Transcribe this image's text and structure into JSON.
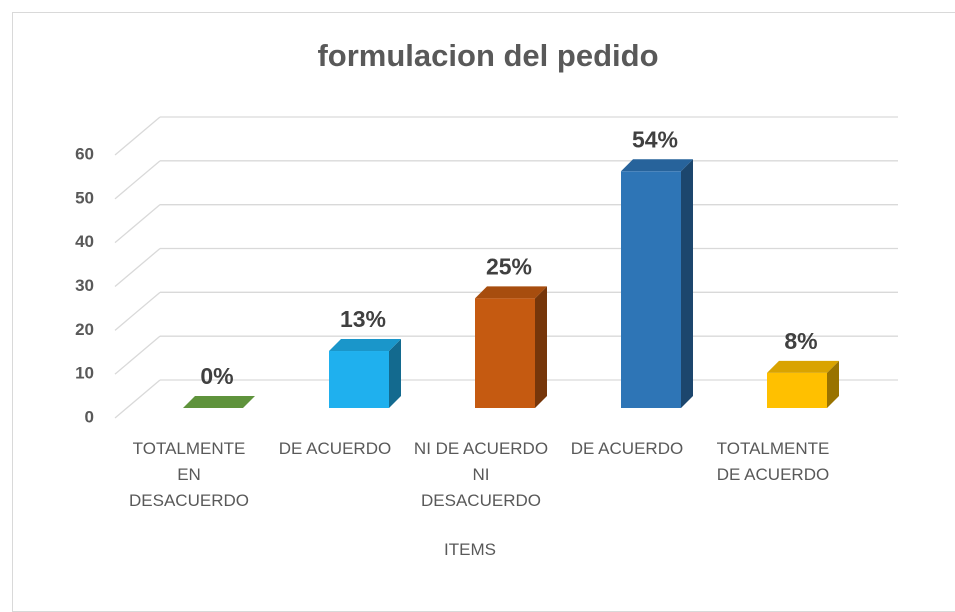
{
  "chart_data": {
    "type": "bar",
    "title": "formulacion del pedido",
    "categories": [
      "TOTALMENTE EN DESACUERDO",
      "DE ACUERDO",
      "NI DE ACUERDO NI DESACUERDO",
      "DE ACUERDO",
      "TOTALMENTE DE ACUERDO"
    ],
    "values": [
      0,
      13,
      25,
      54,
      8
    ],
    "value_labels": [
      "0%",
      "13%",
      "25%",
      "54%",
      "8%"
    ],
    "colors": [
      "#70ad47",
      "#1fb0ee",
      "#c55a11",
      "#2e75b6",
      "#ffc000"
    ],
    "x_label": "ITEMS",
    "ylim": [
      0,
      60
    ],
    "yticks": [
      0,
      10,
      20,
      30,
      40,
      50,
      60
    ],
    "grid": true
  }
}
